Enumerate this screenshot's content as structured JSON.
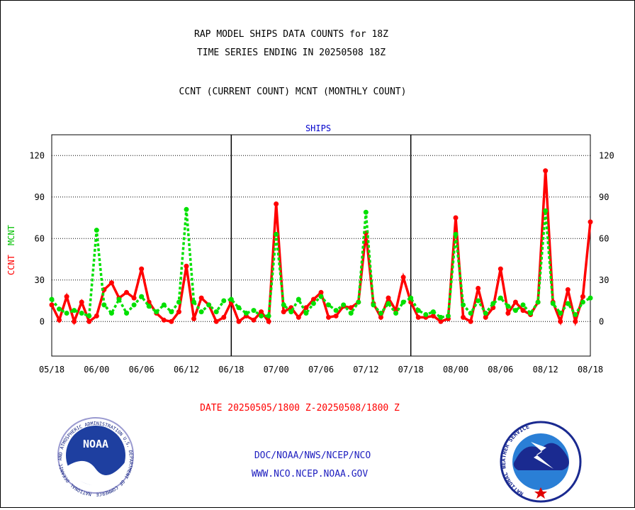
{
  "header": {
    "title_line1": "RAP MODEL SHIPS DATA COUNTS for 18Z",
    "title_line2": "TIME SERIES ENDING IN 20250508 18Z",
    "subtitle": "CCNT (CURRENT COUNT) MCNT (MONTHLY COUNT)"
  },
  "footer": {
    "date_range": "DATE 20250505/1800 Z-20250508/1800 Z",
    "org_line": "DOC/NOAA/NWS/NCEP/NCO",
    "url_line": "WWW.NCO.NCEP.NOAA.GOV"
  },
  "logos": {
    "noaa_text": "NOAA",
    "noaa_ring": "NATIONAL OCEANIC AND ATMOSPHERIC ADMINISTRATION U.S. DEPARTMENT OF COMMERCE",
    "nws_ring": "NATIONAL WEATHER SERVICE"
  },
  "colors": {
    "ccnt": "#ff0000",
    "mcnt": "#00e000",
    "panel_title": "#0000cc",
    "footer_blue": "#2020c0",
    "date_red": "#ff0000"
  },
  "chart_data": {
    "type": "line",
    "panel_title": "SHIPS",
    "ylabel_ccnt": "CCNT",
    "ylabel_mcnt": "MCNT",
    "ylim": [
      -25,
      135
    ],
    "y_ticks": [
      0,
      30,
      60,
      90,
      120
    ],
    "grid": true,
    "x_tick_labels": [
      "05/18",
      "06/00",
      "06/06",
      "06/12",
      "06/18",
      "07/00",
      "07/06",
      "07/12",
      "07/18",
      "08/00",
      "08/06",
      "08/12",
      "08/18"
    ],
    "x_start_hour": 0,
    "x_end_hour": 72,
    "day_separators_hour": [
      24,
      48
    ],
    "series": [
      {
        "name": "CCNT",
        "color": "#ff0000",
        "points": [
          [
            0,
            12
          ],
          [
            1,
            1
          ],
          [
            2,
            18
          ],
          [
            3,
            0
          ],
          [
            4,
            14
          ],
          [
            5,
            0
          ],
          [
            6,
            4
          ],
          [
            7,
            23
          ],
          [
            8,
            28
          ],
          [
            9,
            17
          ],
          [
            10,
            21
          ],
          [
            11,
            17
          ],
          [
            12,
            38
          ],
          [
            13,
            14
          ],
          [
            14,
            6
          ],
          [
            15,
            1
          ],
          [
            16,
            0
          ],
          [
            17,
            7
          ],
          [
            18,
            40
          ],
          [
            19,
            2
          ],
          [
            20,
            17
          ],
          [
            21,
            12
          ],
          [
            22,
            0
          ],
          [
            23,
            3
          ],
          [
            24,
            14
          ],
          [
            25,
            0
          ],
          [
            26,
            4
          ],
          [
            27,
            1
          ],
          [
            28,
            7
          ],
          [
            29,
            0
          ],
          [
            30,
            85
          ],
          [
            31,
            7
          ],
          [
            32,
            10
          ],
          [
            33,
            3
          ],
          [
            34,
            10
          ],
          [
            35,
            16
          ],
          [
            36,
            21
          ],
          [
            37,
            3
          ],
          [
            38,
            4
          ],
          [
            39,
            11
          ],
          [
            40,
            10
          ],
          [
            41,
            14
          ],
          [
            42,
            64
          ],
          [
            43,
            13
          ],
          [
            44,
            3
          ],
          [
            45,
            17
          ],
          [
            46,
            8
          ],
          [
            47,
            32
          ],
          [
            48,
            14
          ],
          [
            49,
            3
          ],
          [
            50,
            3
          ],
          [
            51,
            4
          ],
          [
            52,
            0
          ],
          [
            53,
            2
          ],
          [
            54,
            75
          ],
          [
            55,
            3
          ],
          [
            56,
            0
          ],
          [
            57,
            24
          ],
          [
            58,
            3
          ],
          [
            59,
            10
          ],
          [
            60,
            38
          ],
          [
            61,
            6
          ],
          [
            62,
            14
          ],
          [
            63,
            8
          ],
          [
            64,
            5
          ],
          [
            65,
            14
          ],
          [
            66,
            109
          ],
          [
            67,
            14
          ],
          [
            68,
            0
          ],
          [
            69,
            23
          ],
          [
            70,
            0
          ],
          [
            71,
            18
          ],
          [
            72,
            72
          ]
        ]
      },
      {
        "name": "MCNT",
        "color": "#00e000",
        "points": [
          [
            0,
            16
          ],
          [
            1,
            9
          ],
          [
            2,
            6
          ],
          [
            3,
            8
          ],
          [
            4,
            6
          ],
          [
            5,
            4
          ],
          [
            6,
            66
          ],
          [
            7,
            12
          ],
          [
            8,
            6
          ],
          [
            9,
            16
          ],
          [
            10,
            6
          ],
          [
            11,
            12
          ],
          [
            12,
            18
          ],
          [
            13,
            11
          ],
          [
            14,
            7
          ],
          [
            15,
            12
          ],
          [
            16,
            7
          ],
          [
            17,
            14
          ],
          [
            18,
            81
          ],
          [
            19,
            14
          ],
          [
            20,
            7
          ],
          [
            21,
            12
          ],
          [
            22,
            7
          ],
          [
            23,
            15
          ],
          [
            24,
            16
          ],
          [
            25,
            10
          ],
          [
            26,
            6
          ],
          [
            27,
            8
          ],
          [
            28,
            4
          ],
          [
            29,
            4
          ],
          [
            30,
            63
          ],
          [
            31,
            12
          ],
          [
            32,
            7
          ],
          [
            33,
            16
          ],
          [
            34,
            6
          ],
          [
            35,
            13
          ],
          [
            36,
            18
          ],
          [
            37,
            12
          ],
          [
            38,
            8
          ],
          [
            39,
            12
          ],
          [
            40,
            6
          ],
          [
            41,
            14
          ],
          [
            42,
            79
          ],
          [
            43,
            12
          ],
          [
            44,
            6
          ],
          [
            45,
            13
          ],
          [
            46,
            6
          ],
          [
            47,
            14
          ],
          [
            48,
            17
          ],
          [
            49,
            8
          ],
          [
            50,
            5
          ],
          [
            51,
            7
          ],
          [
            52,
            3
          ],
          [
            53,
            4
          ],
          [
            54,
            63
          ],
          [
            55,
            12
          ],
          [
            56,
            6
          ],
          [
            57,
            15
          ],
          [
            58,
            6
          ],
          [
            59,
            13
          ],
          [
            60,
            17
          ],
          [
            61,
            11
          ],
          [
            62,
            8
          ],
          [
            63,
            12
          ],
          [
            64,
            6
          ],
          [
            65,
            14
          ],
          [
            66,
            80
          ],
          [
            67,
            13
          ],
          [
            68,
            6
          ],
          [
            69,
            13
          ],
          [
            70,
            5
          ],
          [
            71,
            14
          ],
          [
            72,
            17
          ]
        ]
      }
    ]
  }
}
